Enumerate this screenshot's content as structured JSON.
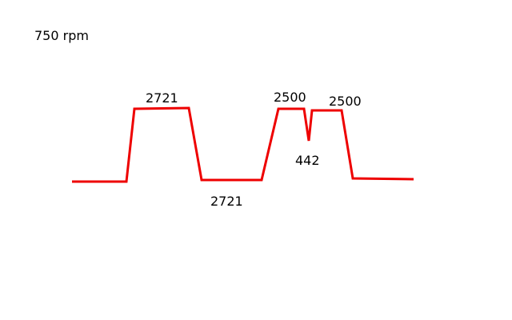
{
  "title": "750 rpm",
  "trace": {
    "color": "#ee0000"
  },
  "labels": {
    "peak_1": "2721",
    "valley_1": "2721",
    "peak_2": "2500",
    "dip": "442",
    "peak_3": "2500"
  }
}
